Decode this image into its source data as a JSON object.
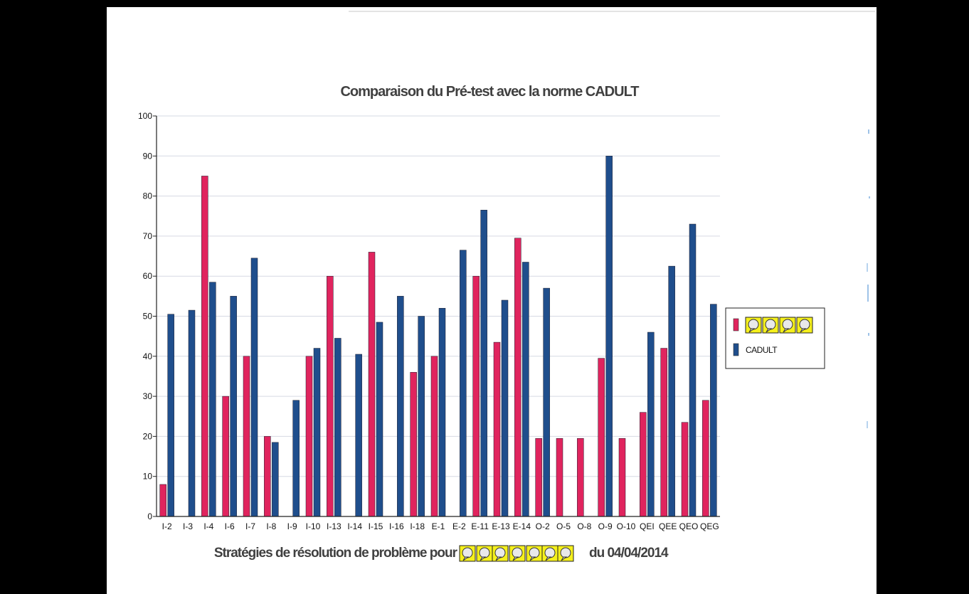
{
  "chart_data": {
    "type": "bar",
    "title": "Comparaison du Pré-test avec la norme CADULT",
    "xlabel_prefix": "Stratégies de résolution de problème pour",
    "xlabel_suffix": "du 04/04/2014",
    "ylim": [
      0,
      100
    ],
    "yticks": [
      0,
      10,
      20,
      30,
      40,
      50,
      60,
      70,
      80,
      90,
      100
    ],
    "grid": true,
    "legend_position": "right",
    "categories": [
      "I-2",
      "I-3",
      "I-4",
      "I-6",
      "I-7",
      "I-8",
      "I-9",
      "I-10",
      "I-13",
      "I-14",
      "I-15",
      "I-16",
      "I-18",
      "E-1",
      "E-2",
      "E-11",
      "E-13",
      "E-14",
      "O-2",
      "O-5",
      "O-8",
      "O-9",
      "O-10",
      "QEI",
      "QEE",
      "QEO",
      "QEG"
    ],
    "series": [
      {
        "name": "",
        "color": "#e0245e",
        "values": [
          8,
          0,
          85,
          30,
          40,
          20,
          0,
          40,
          60,
          0,
          66,
          0,
          36,
          40,
          0,
          60,
          43.5,
          69.5,
          19.5,
          19.5,
          19.5,
          39.5,
          19.5,
          26,
          42,
          23.5,
          29
        ]
      },
      {
        "name": "CADULT",
        "color": "#1f4e8c",
        "values": [
          50.5,
          51.5,
          58.5,
          55,
          64.5,
          18.5,
          29,
          42,
          44.5,
          40.5,
          48.5,
          55,
          50,
          52,
          66.5,
          76.5,
          54,
          63.5,
          57,
          0,
          0,
          90,
          0,
          46,
          62.5,
          73,
          53
        ]
      }
    ]
  }
}
